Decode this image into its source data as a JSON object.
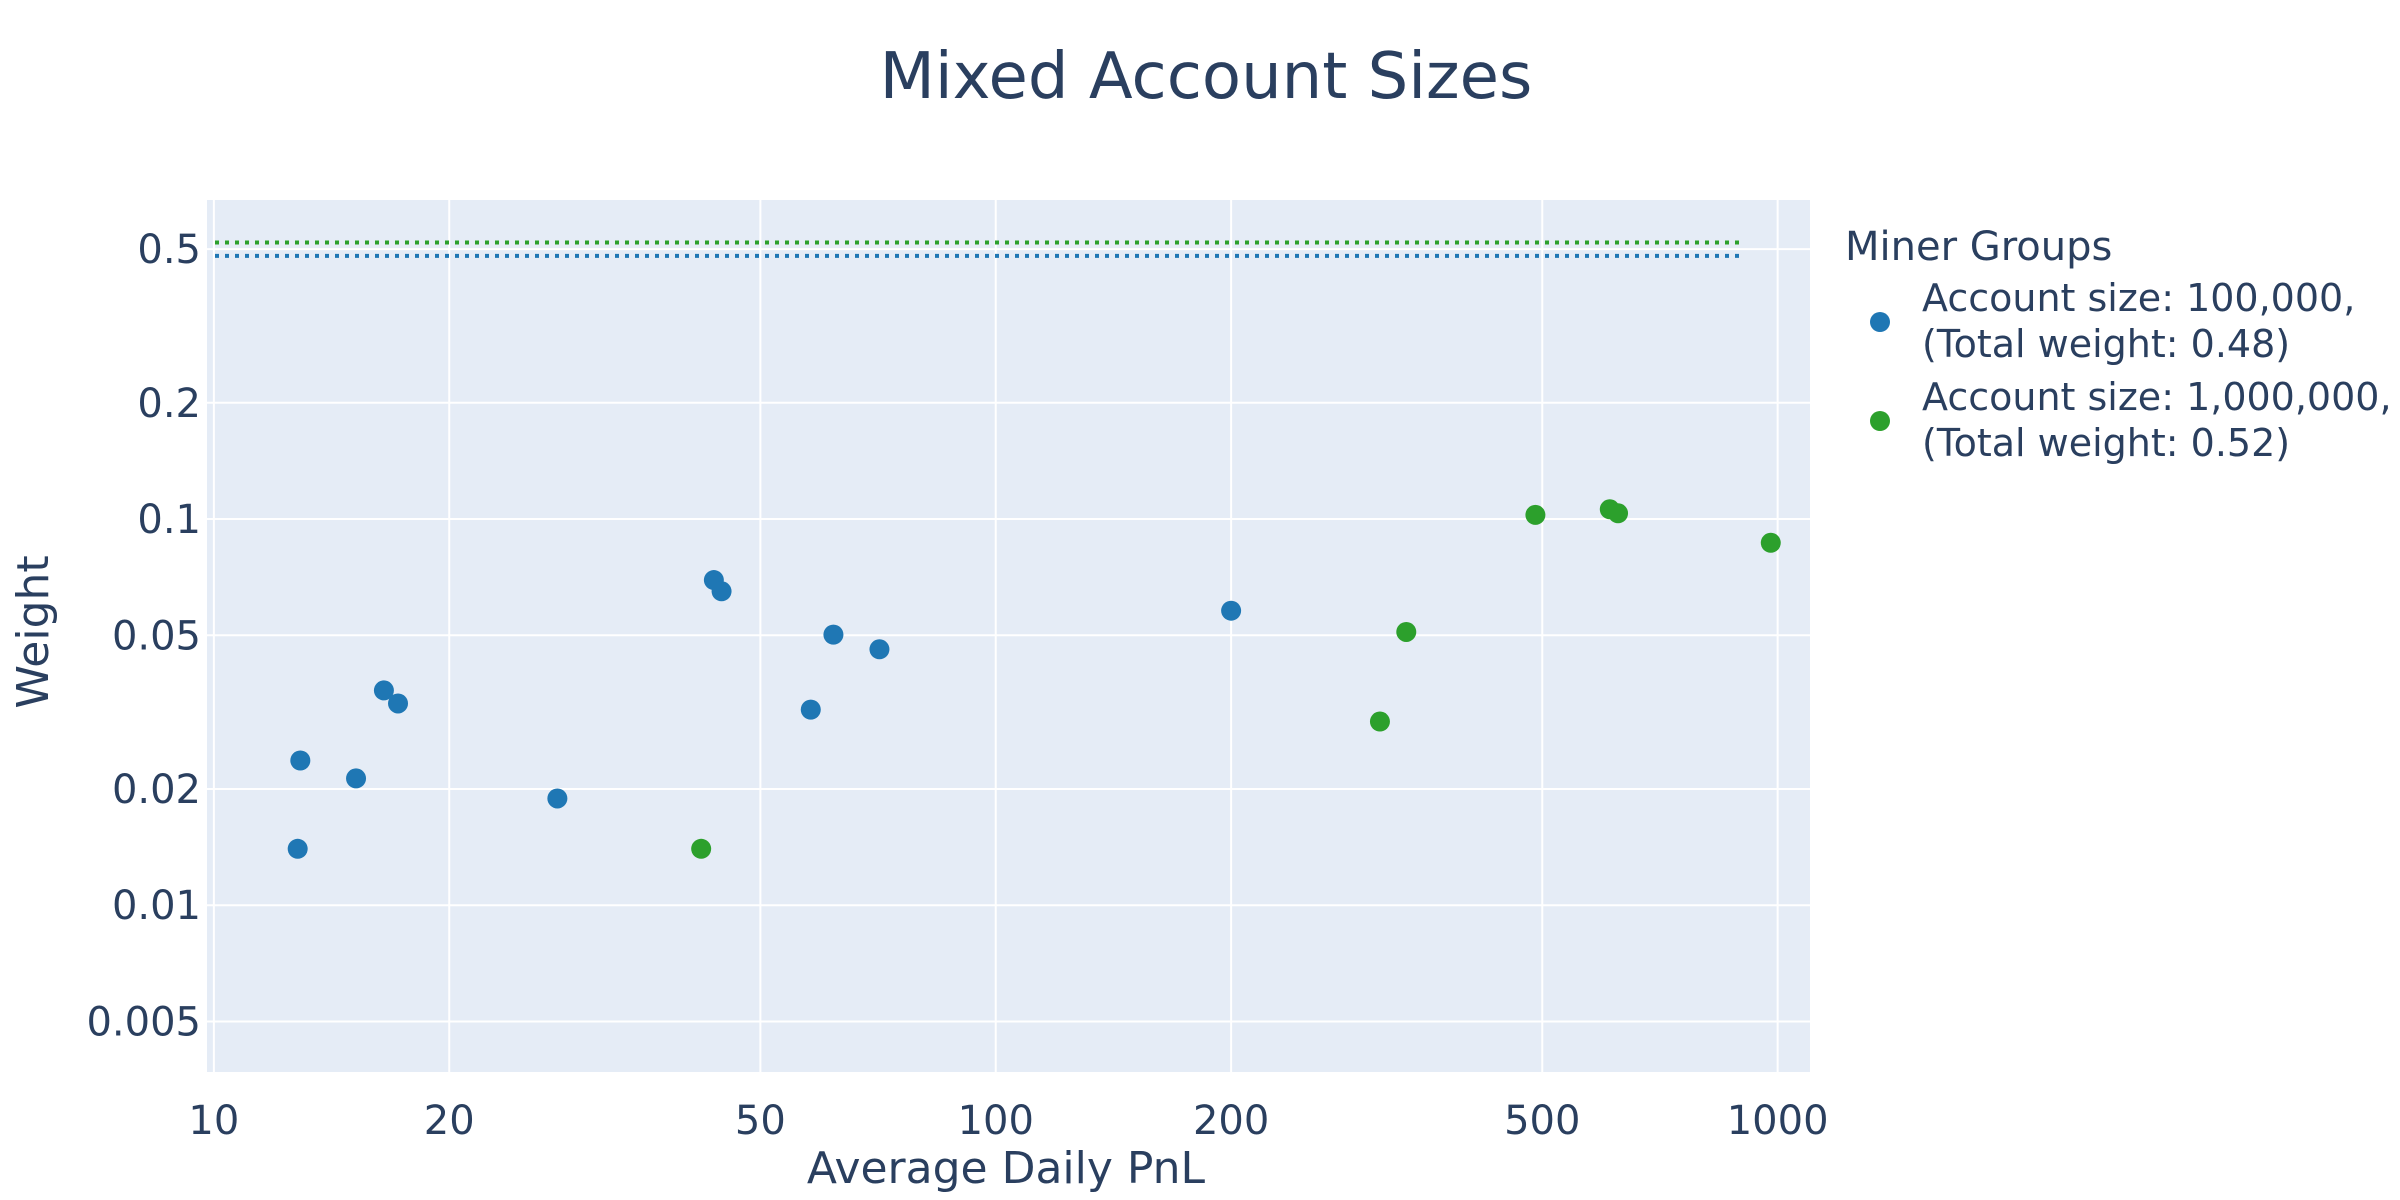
{
  "chart_data": {
    "type": "scatter",
    "title": "Mixed Account Sizes",
    "xlabel": "Average Daily PnL",
    "ylabel": "Weight",
    "x_scale": "log",
    "y_scale": "log",
    "xlim": [
      9.8,
      1100
    ],
    "ylim": [
      0.0037,
      0.67
    ],
    "x_ticks": [
      10,
      20,
      50,
      100,
      200,
      500,
      1000
    ],
    "x_tick_labels": [
      "10",
      "20",
      "50",
      "100",
      "200",
      "500",
      "1000"
    ],
    "y_ticks": [
      0.005,
      0.01,
      0.02,
      0.05,
      0.1,
      0.2,
      0.5
    ],
    "y_tick_labels": [
      "0.005",
      "0.01",
      "0.02",
      "0.05",
      "0.1",
      "0.2",
      "0.5"
    ],
    "grid": true,
    "plot_background": "#e5ecf6",
    "legend": {
      "title": "Miner Groups",
      "placement": "right"
    },
    "series": [
      {
        "name": "Account size: 100,000, (Total weight: 0.48)",
        "legend_lines": [
          "Account size: 100,000,",
          "(Total weight: 0.48)"
        ],
        "color": "#1f77b4",
        "total_weight": 0.48,
        "points": [
          {
            "x": 12.8,
            "y": 0.014
          },
          {
            "x": 12.9,
            "y": 0.0237
          },
          {
            "x": 15.2,
            "y": 0.0213
          },
          {
            "x": 16.5,
            "y": 0.036
          },
          {
            "x": 17.2,
            "y": 0.0333
          },
          {
            "x": 27.5,
            "y": 0.0189
          },
          {
            "x": 43.6,
            "y": 0.0695
          },
          {
            "x": 44.6,
            "y": 0.065
          },
          {
            "x": 58.0,
            "y": 0.0321
          },
          {
            "x": 62.0,
            "y": 0.0502
          },
          {
            "x": 71.0,
            "y": 0.046
          },
          {
            "x": 200.0,
            "y": 0.0579
          }
        ]
      },
      {
        "name": "Account size: 1,000,000, (Total weight: 0.52)",
        "legend_lines": [
          "Account size: 1,000,000,",
          "(Total weight: 0.52)"
        ],
        "color": "#2ca02c",
        "total_weight": 0.52,
        "points": [
          {
            "x": 42.0,
            "y": 0.014
          },
          {
            "x": 310.0,
            "y": 0.0299
          },
          {
            "x": 335.0,
            "y": 0.051
          },
          {
            "x": 490.0,
            "y": 0.1025
          },
          {
            "x": 610.0,
            "y": 0.106
          },
          {
            "x": 625.0,
            "y": 0.1035
          },
          {
            "x": 980.0,
            "y": 0.0868
          }
        ]
      }
    ]
  }
}
